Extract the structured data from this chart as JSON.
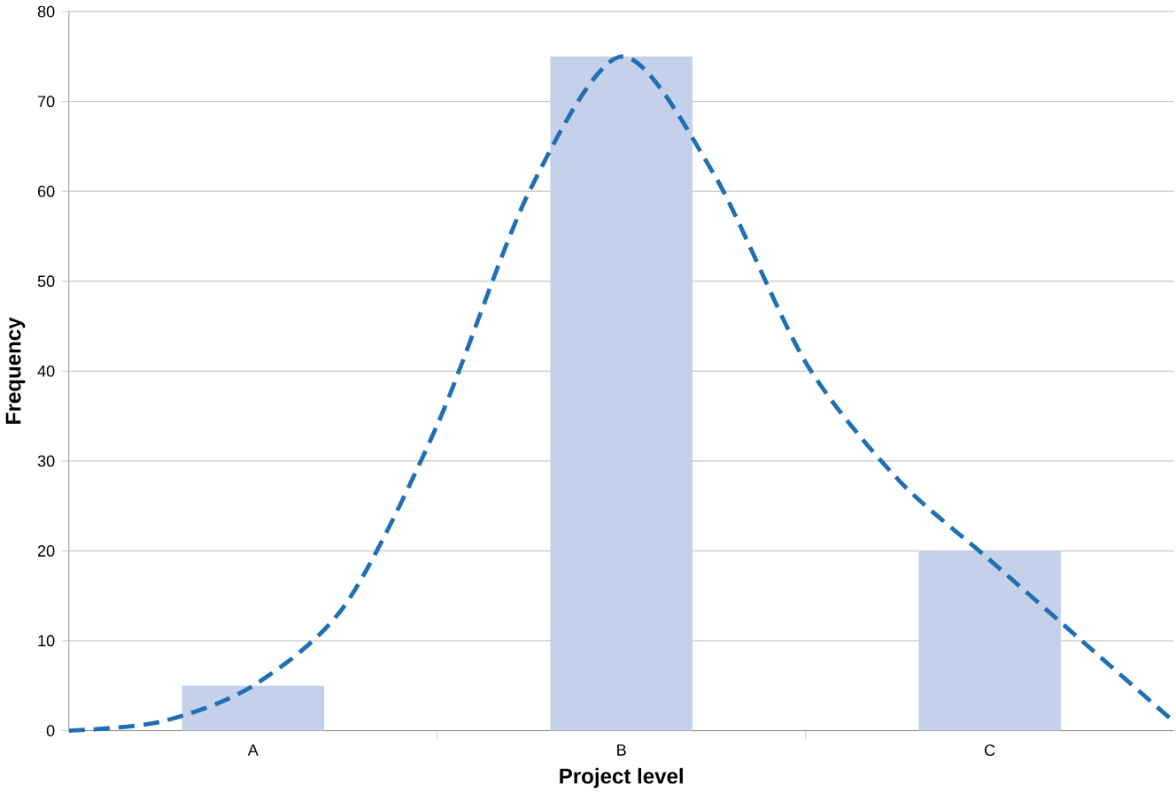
{
  "chart_data": {
    "type": "bar",
    "xlabel": "Project level",
    "ylabel": "Frequency",
    "categories": [
      null,
      null,
      "A",
      null,
      null,
      null,
      "B",
      null,
      null,
      null,
      "C",
      null,
      null
    ],
    "series": [
      {
        "color": "#c5d1ea",
        "values": [
          null,
          null,
          5,
          null,
          null,
          null,
          75,
          null,
          null,
          null,
          20,
          null,
          null
        ]
      },
      {
        "type": "line",
        "color": "#1f6fb4",
        "line_style": "dashed",
        "values": [
          0,
          1,
          5,
          14,
          34,
          60,
          75,
          62,
          41,
          28,
          19,
          10,
          1
        ]
      }
    ],
    "ylim": [
      0,
      80
    ],
    "yticks": [
      0,
      10,
      20,
      30,
      40,
      50,
      60,
      70,
      80
    ],
    "grid": "y",
    "legend": false
  }
}
